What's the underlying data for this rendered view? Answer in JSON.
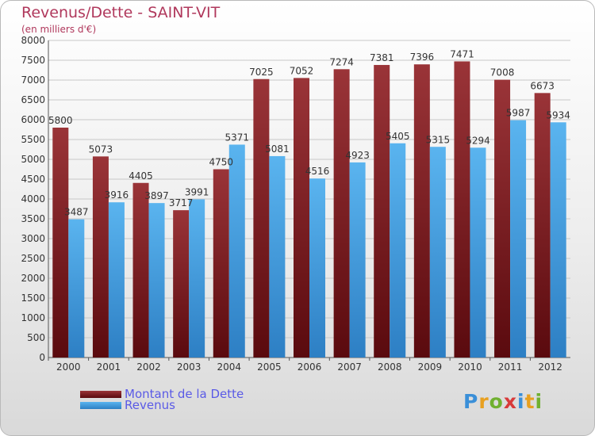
{
  "chart_data": {
    "type": "bar",
    "title": "Revenus/Dette - SAINT-VIT",
    "subtitle": "(en milliers d'€)",
    "categories": [
      "2000",
      "2001",
      "2002",
      "2003",
      "2004",
      "2005",
      "2006",
      "2007",
      "2008",
      "2009",
      "2010",
      "2011",
      "2012"
    ],
    "series": [
      {
        "name": "Montant de la Dette",
        "color": "#7a1a1e",
        "values": [
          5800,
          5073,
          4405,
          3717,
          4750,
          7025,
          7052,
          7274,
          7381,
          7396,
          7471,
          7008,
          6673
        ]
      },
      {
        "name": "Revenus",
        "color": "#4da6e8",
        "values": [
          3487,
          3916,
          3897,
          3991,
          5371,
          5081,
          4516,
          4923,
          5405,
          5315,
          5294,
          5987,
          5934
        ]
      }
    ],
    "ylim": [
      0,
      8000
    ],
    "ytick_step": 500,
    "grid": true
  },
  "logo": {
    "text": "Proxiti"
  }
}
